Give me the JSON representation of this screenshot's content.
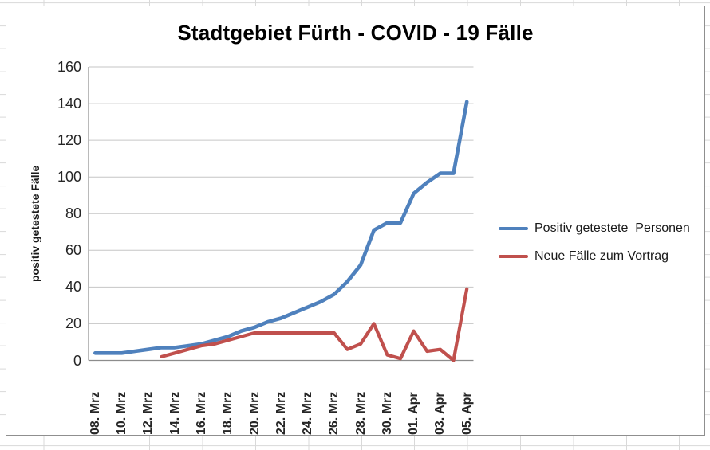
{
  "chart_data": {
    "type": "line",
    "title": "Stadtgebiet Fürth - COVID - 19 Fälle",
    "ylabel": "positiv getestete Fälle",
    "xlabel": "",
    "ylim": [
      0,
      160
    ],
    "yticks": [
      0,
      20,
      40,
      60,
      80,
      100,
      120,
      140,
      160
    ],
    "x_count": 29,
    "xtick_every": 2,
    "xtick_labels": [
      "08. Mrz",
      "10. Mrz",
      "12. Mrz",
      "14. Mrz",
      "16. Mrz",
      "18. Mrz",
      "20. Mrz",
      "22. Mrz",
      "24. Mrz",
      "26. Mrz",
      "28. Mrz",
      "30. Mrz",
      "01. Apr",
      "03. Apr",
      "05. Apr"
    ],
    "grid": "horizontal-only",
    "legend_position": "right",
    "series": [
      {
        "name": "Positiv getestete  Personen",
        "color": "#4F81BD",
        "values": [
          4,
          4,
          4,
          5,
          6,
          7,
          7,
          8,
          9,
          11,
          13,
          16,
          18,
          21,
          23,
          26,
          29,
          32,
          36,
          43,
          52,
          71,
          75,
          75,
          91,
          97,
          102,
          102,
          141
        ]
      },
      {
        "name": "Neue Fälle zum Vortrag",
        "color": "#C0504D",
        "values": [
          null,
          null,
          null,
          null,
          null,
          2,
          4,
          6,
          8,
          9,
          11,
          13,
          15,
          15,
          15,
          15,
          15,
          15,
          15,
          6,
          9,
          20,
          3,
          1,
          16,
          5,
          6,
          0,
          39
        ]
      }
    ]
  },
  "colors": {
    "gridline": "#c6c6c6",
    "axis": "#8c8c8c",
    "chart_border": "#8f8f8f",
    "sheet_gridline": "#d9d9d9",
    "text": "#262626",
    "title_text": "#000000"
  }
}
